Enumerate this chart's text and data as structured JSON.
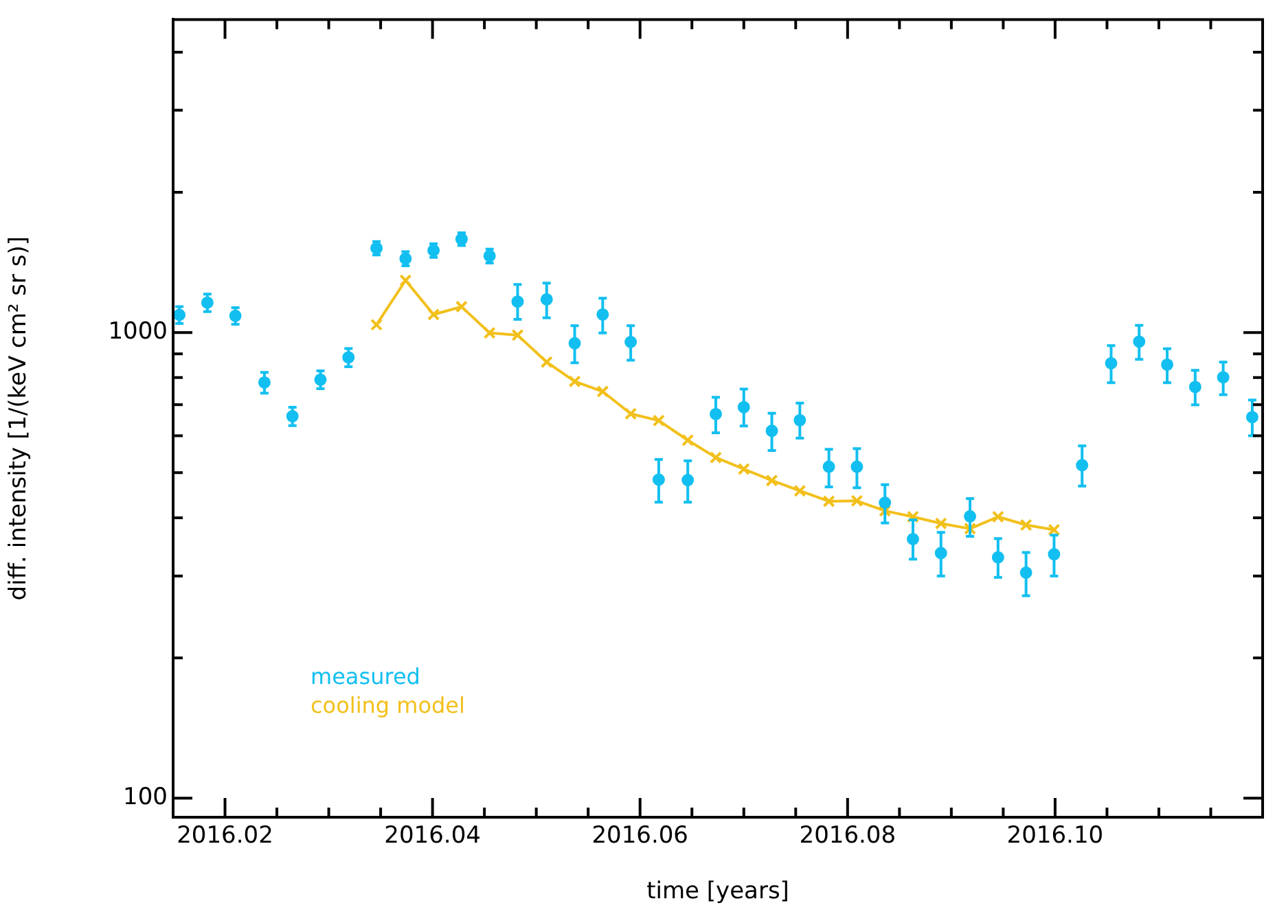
{
  "chart_data": {
    "type": "scatter",
    "xlabel": "time [years]",
    "ylabel": "diff. intensity [1/(keV cm² sr s)]",
    "x": [
      2016.0156,
      2016.0183,
      2016.021,
      2016.0238,
      2016.0265,
      2016.0292,
      2016.0319,
      2016.0346,
      2016.0374,
      2016.0401,
      2016.0428,
      2016.0455,
      2016.0482,
      2016.051,
      2016.0537,
      2016.0564,
      2016.0591,
      2016.0618,
      2016.0646,
      2016.0673,
      2016.07,
      2016.0727,
      2016.0754,
      2016.0782,
      2016.0809,
      2016.0836,
      2016.0863,
      2016.089,
      2016.0918,
      2016.0945,
      2016.0972,
      2016.0999,
      2016.1026,
      2016.1054,
      2016.1081,
      2016.1108,
      2016.1135,
      2016.1162,
      2016.119
    ],
    "series": [
      {
        "name": "measured",
        "type": "scatter",
        "color": "#12bff0",
        "marker": "circle",
        "values": [
          1091,
          1159,
          1086,
          781,
          661,
          792,
          884,
          1517,
          1441,
          1500,
          1587,
          1460,
          1165,
          1178,
          948,
          1093,
          954,
          483,
          482,
          668,
          691,
          615,
          648,
          515,
          515,
          431,
          360,
          336,
          403,
          329,
          305,
          334,
          519,
          859,
          956,
          853,
          764,
          801,
          658
        ],
        "errors": [
          45,
          50,
          45,
          40,
          30,
          35,
          40,
          50,
          50,
          50,
          50,
          50,
          [
            1067,
            1268
          ],
          [
            1075,
            1277
          ],
          [
            861,
            1034
          ],
          [
            998,
            1185
          ],
          [
            872,
            1034
          ],
          [
            432,
            534
          ],
          [
            432,
            530
          ],
          [
            609,
            726
          ],
          [
            630,
            756
          ],
          [
            558,
            671
          ],
          [
            593,
            705
          ],
          [
            466,
            561
          ],
          [
            464,
            563
          ],
          [
            390,
            471
          ],
          [
            326,
            396
          ],
          [
            300,
            372
          ],
          [
            365,
            440
          ],
          [
            298,
            361
          ],
          [
            272,
            337
          ],
          [
            300,
            367
          ],
          [
            468,
            571
          ],
          [
            780,
            937
          ],
          [
            876,
            1036
          ],
          [
            780,
            923
          ],
          [
            699,
            829
          ],
          [
            735,
            864
          ],
          [
            600,
            716
          ]
        ]
      },
      {
        "name": "cooling model",
        "type": "line",
        "color": "#f2c01c",
        "marker": "cross",
        "line_style": "solid",
        "values": [
          null,
          null,
          null,
          null,
          null,
          null,
          null,
          1039,
          1294,
          1093,
          1136,
          998,
          987,
          864,
          785,
          747,
          669,
          647,
          587,
          539,
          509,
          481,
          457,
          434,
          435,
          414,
          402,
          389,
          379,
          402,
          386,
          377,
          null,
          null,
          null,
          null,
          null,
          null,
          null
        ]
      }
    ],
    "log": "y",
    "xlim": [
      2016.015,
      2016.12
    ],
    "xticks": [
      {
        "value": 2016.015,
        "label": null
      },
      2016.02,
      {
        "value": 2016.025,
        "label": null
      },
      2016.04,
      {
        "value": 2016.03,
        "label": null
      },
      {
        "value": 2016.035,
        "label": null
      },
      {
        "value": 2016.045,
        "label": null
      },
      {
        "value": 2016.05,
        "label": null
      },
      {
        "value": 2016.055,
        "label": null
      },
      2016.06,
      {
        "value": 2016.065,
        "label": null
      },
      {
        "value": 2016.07,
        "label": null
      },
      {
        "value": 2016.075,
        "label": null
      },
      2016.08,
      {
        "value": 2016.085,
        "label": null
      },
      {
        "value": 2016.09,
        "label": null
      },
      {
        "value": 2016.095,
        "label": null
      },
      {
        "value": 2016.1,
        "label": "2016.10"
      },
      {
        "value": 2016.105,
        "label": null
      },
      {
        "value": 2016.11,
        "label": null
      },
      {
        "value": 2016.115,
        "label": null
      }
    ],
    "ylim": [
      91,
      4700
    ],
    "yticks": [
      100,
      {
        "value": 200,
        "label": null
      },
      {
        "value": 300,
        "label": null
      },
      {
        "value": 400,
        "label": null
      },
      {
        "value": 500,
        "label": null
      },
      {
        "value": 600,
        "label": null
      },
      {
        "value": 700,
        "label": null
      },
      {
        "value": 800,
        "label": null
      },
      {
        "value": 900,
        "label": null
      },
      1000,
      {
        "value": 2000,
        "label": null
      },
      {
        "value": 3000,
        "label": null
      },
      {
        "value": 4000,
        "label": null
      }
    ],
    "grid": false,
    "legend": "bottom left"
  }
}
